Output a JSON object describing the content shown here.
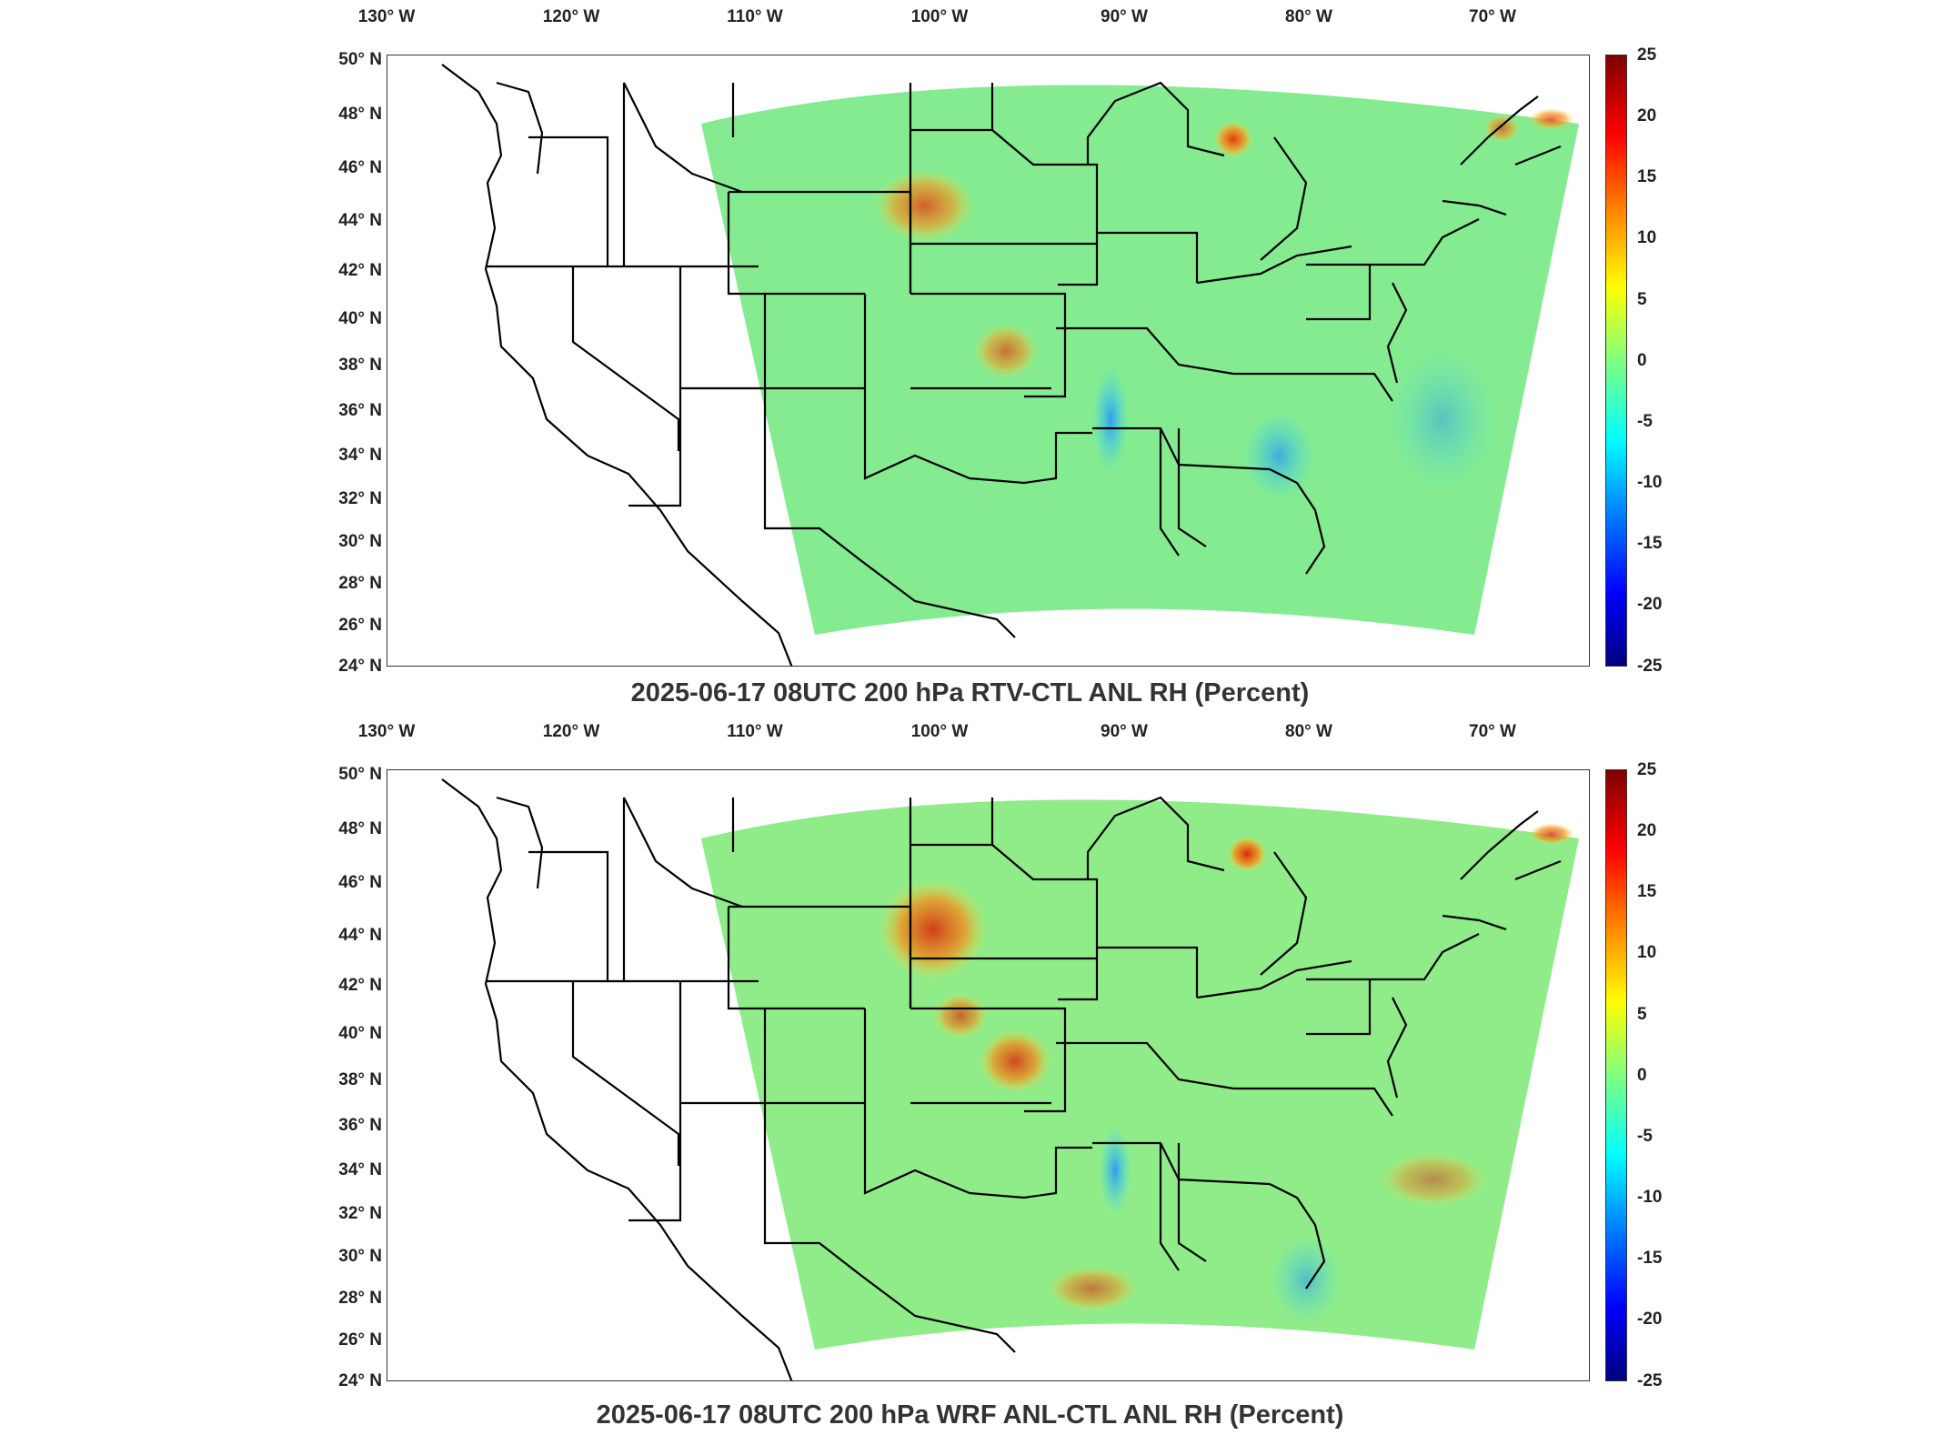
{
  "panels": [
    {
      "title": "2025-06-17 08UTC 200 hPa RTV-CTL ANL RH (Percent)",
      "lon_labels": [
        "130° W",
        "120° W",
        "110° W",
        "100° W",
        "90° W",
        "80° W",
        "70° W"
      ],
      "lat_labels": [
        "50° N",
        "48° N",
        "46° N",
        "44° N",
        "42° N",
        "40° N",
        "38° N",
        "36° N",
        "34° N",
        "32° N",
        "30° N",
        "28° N",
        "26° N",
        "24° N"
      ],
      "colorbar_ticks": [
        "25",
        "20",
        "15",
        "10",
        "5",
        "0",
        "-5",
        "-10",
        "-15",
        "-20",
        "-25"
      ]
    },
    {
      "title": "2025-06-17 08UTC 200 hPa WRF ANL-CTL ANL RH (Percent)",
      "lon_labels": [
        "130° W",
        "120° W",
        "110° W",
        "100° W",
        "90° W",
        "80° W",
        "70° W"
      ],
      "lat_labels": [
        "50° N",
        "48° N",
        "46° N",
        "44° N",
        "42° N",
        "40° N",
        "38° N",
        "36° N",
        "34° N",
        "32° N",
        "30° N",
        "28° N",
        "26° N",
        "24° N"
      ],
      "colorbar_ticks": [
        "25",
        "20",
        "15",
        "10",
        "5",
        "0",
        "-5",
        "-10",
        "-15",
        "-20",
        "-25"
      ]
    }
  ],
  "colormap": [
    "#00007f",
    "#0000ff",
    "#0080ff",
    "#00ffff",
    "#7fff7f",
    "#ffff00",
    "#ff8000",
    "#ff0000",
    "#7f0000"
  ],
  "colorbar_range": [
    -25,
    25
  ]
}
